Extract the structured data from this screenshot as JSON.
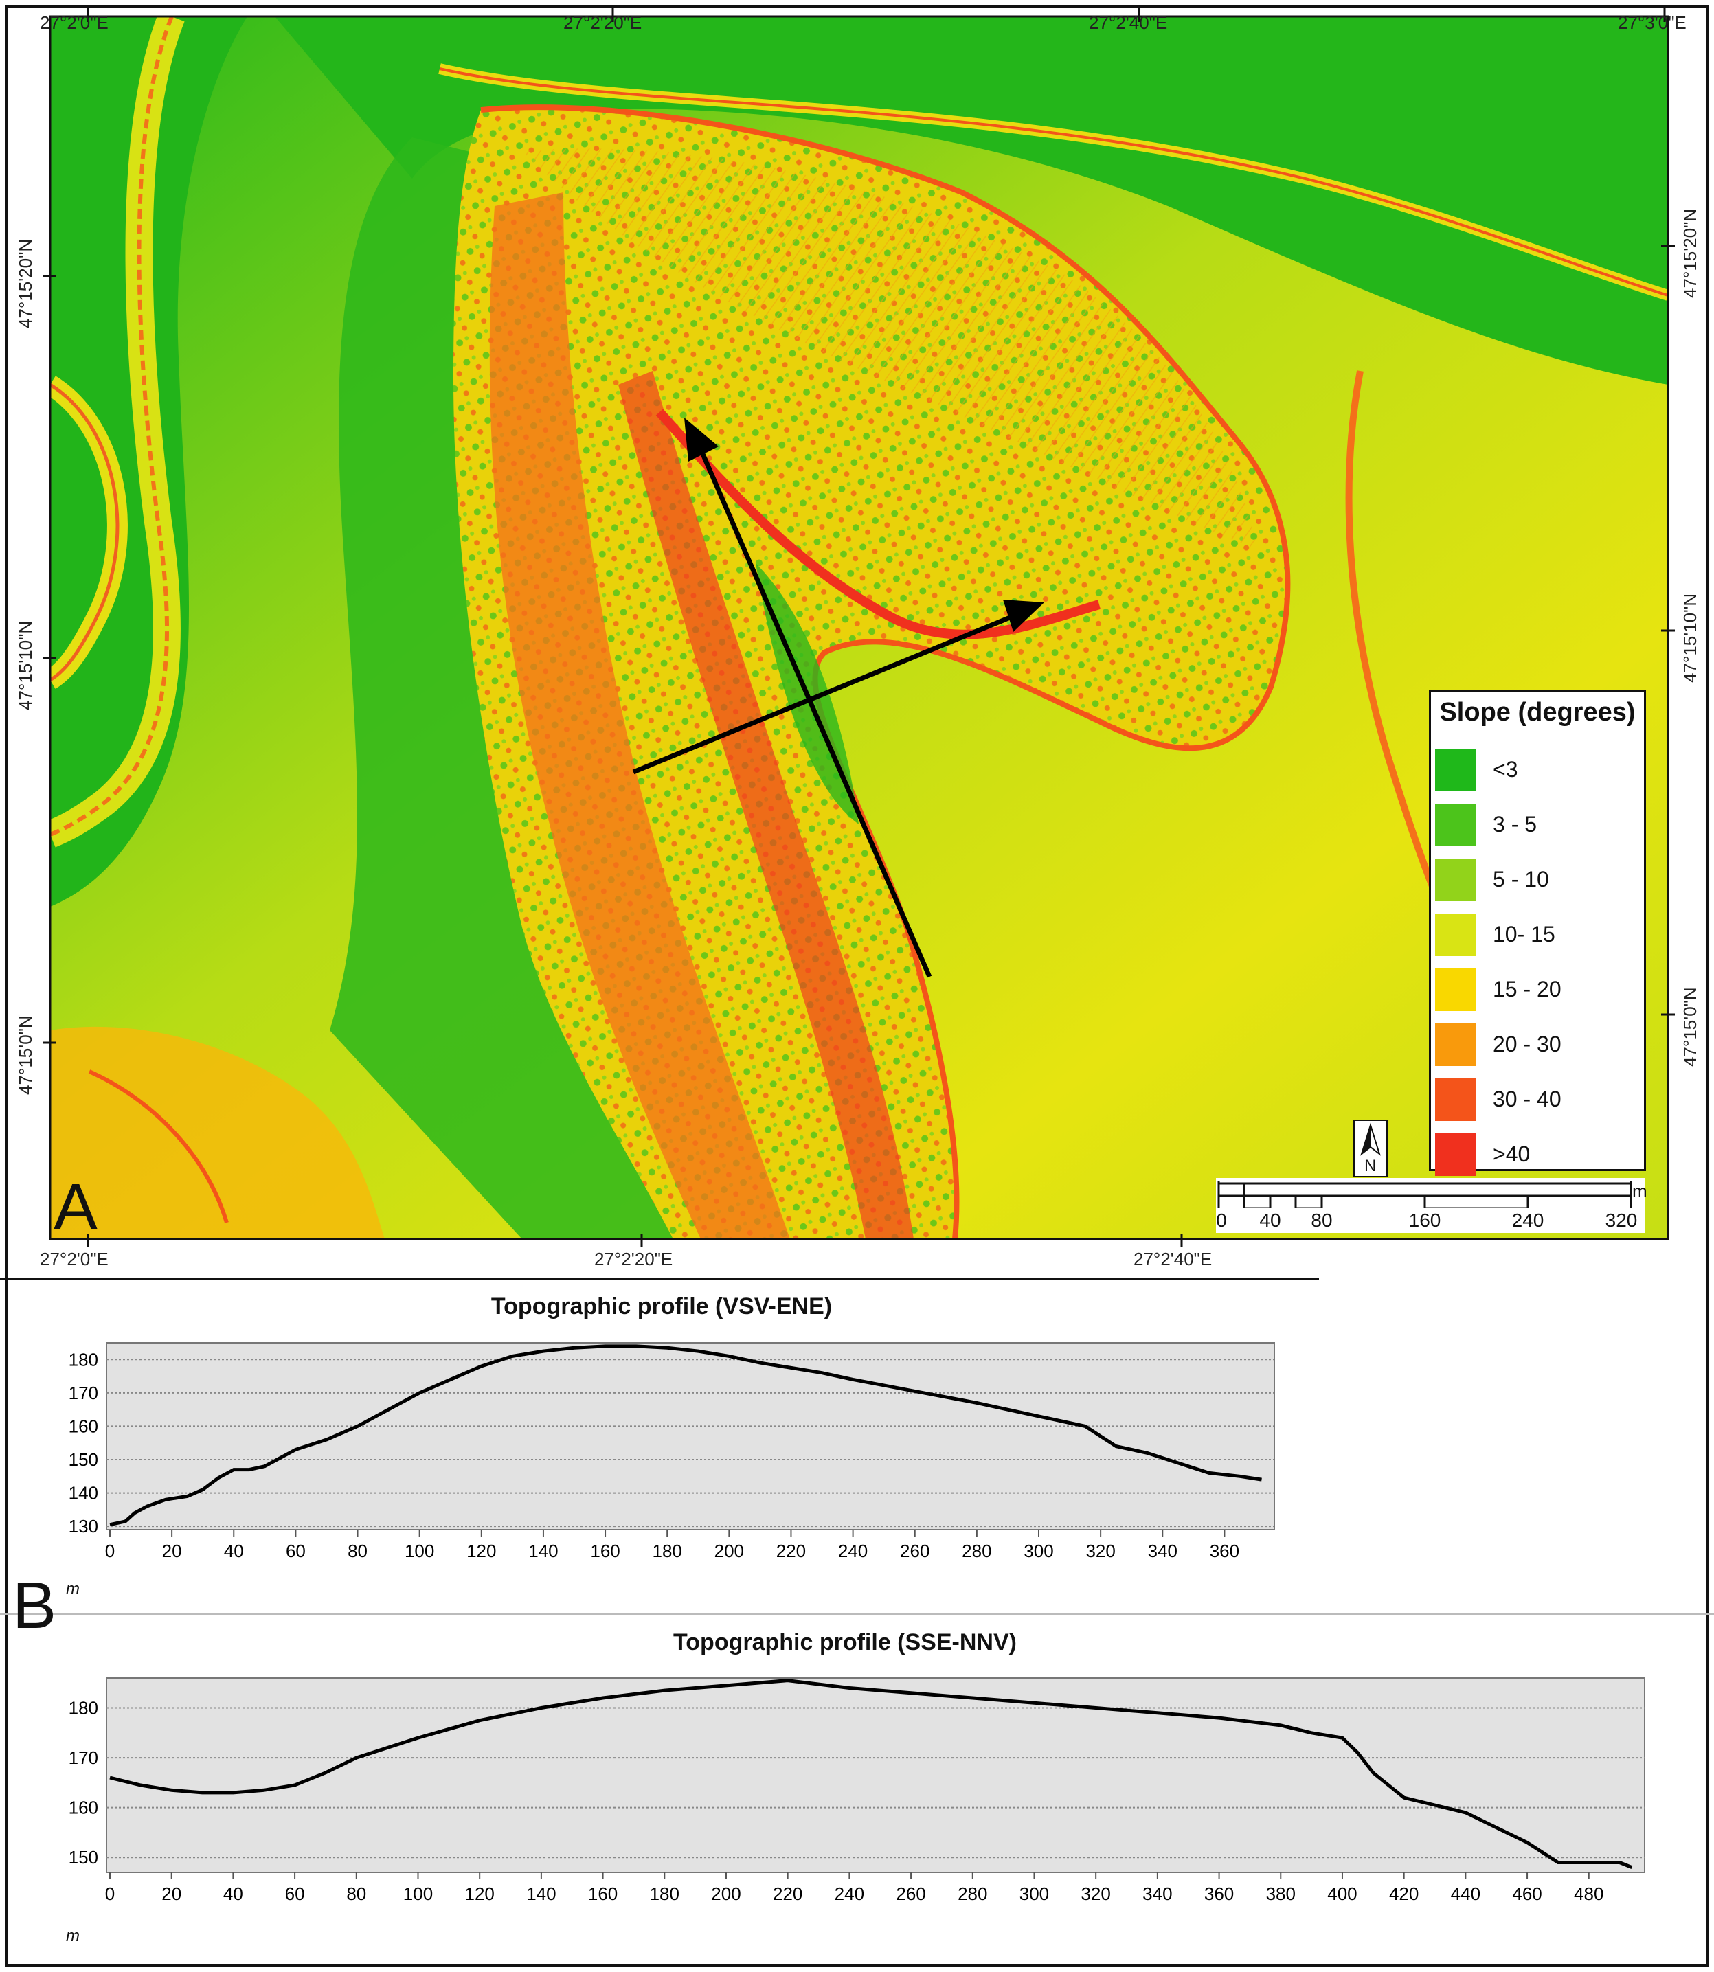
{
  "panel_a": {
    "letter": "A",
    "lon_labels_top": [
      "27°2'0\"E",
      "27°2'20\"E",
      "27°2'40\"E",
      "27°3'0\"E"
    ],
    "lon_labels_bottom": [
      "27°2'0\"E",
      "27°2'20\"E",
      "27°2'40\"E"
    ],
    "lat_labels_left": [
      "47°15'20\"N",
      "47°15'10\"N",
      "47°15'0\"N"
    ],
    "lat_labels_right": [
      "47°15'20\"N",
      "47°15'10\"N",
      "47°15'0\"N"
    ],
    "legend": {
      "title": "Slope (degrees)",
      "items": [
        {
          "label": "<3",
          "color": "#1fb81a"
        },
        {
          "label": "3 - 5",
          "color": "#4cc41b"
        },
        {
          "label": "5 - 10",
          "color": "#92d31a"
        },
        {
          "label": "10- 15",
          "color": "#d9e414"
        },
        {
          "label": "15 - 20",
          "color": "#f9d800"
        },
        {
          "label": "20 - 30",
          "color": "#f99a0c"
        },
        {
          "label": "30 - 40",
          "color": "#f4541a"
        },
        {
          "label": ">40",
          "color": "#f0301e"
        }
      ]
    },
    "north_label": "N",
    "scale": {
      "labels": [
        "0",
        "40",
        "80",
        "160",
        "240",
        "320"
      ],
      "unit": "m"
    }
  },
  "panel_b": {
    "letter": "B",
    "unit_label": "m",
    "chart_data": [
      {
        "type": "line",
        "title": "Topographic profile (VSV-ENE)",
        "xlabel": "m",
        "ylabel": "",
        "xlim": [
          0,
          375
        ],
        "ylim": [
          129,
          185
        ],
        "xticks": [
          0,
          20,
          40,
          60,
          80,
          100,
          120,
          140,
          160,
          180,
          200,
          220,
          240,
          260,
          280,
          300,
          320,
          340,
          360
        ],
        "yticks": [
          130,
          140,
          150,
          160,
          170,
          180
        ],
        "grid": true,
        "x": [
          0,
          5,
          8,
          12,
          18,
          25,
          30,
          35,
          40,
          45,
          50,
          60,
          70,
          80,
          90,
          100,
          110,
          120,
          130,
          140,
          150,
          160,
          170,
          180,
          190,
          200,
          210,
          220,
          230,
          240,
          260,
          280,
          300,
          315,
          320,
          325,
          335,
          345,
          355,
          365,
          372
        ],
        "y": [
          130.5,
          131.5,
          134,
          136,
          138,
          139,
          141,
          144.5,
          147,
          147,
          148,
          153,
          156,
          160,
          165,
          170,
          174,
          178,
          181,
          182.5,
          183.5,
          184,
          184,
          183.5,
          182.5,
          181,
          179,
          177.5,
          176,
          174,
          170.5,
          167,
          163,
          160,
          157,
          154,
          152,
          149,
          146,
          145,
          144
        ]
      },
      {
        "type": "line",
        "title": "Topographic profile (SSE-NNV)",
        "xlabel": "m",
        "ylabel": "",
        "xlim": [
          0,
          497
        ],
        "ylim": [
          147,
          186
        ],
        "xticks": [
          0,
          20,
          40,
          60,
          80,
          100,
          120,
          140,
          160,
          180,
          200,
          220,
          240,
          260,
          280,
          300,
          320,
          340,
          360,
          380,
          400,
          420,
          440,
          460,
          480
        ],
        "yticks": [
          150,
          160,
          170,
          180
        ],
        "grid": true,
        "x": [
          0,
          10,
          20,
          30,
          40,
          50,
          60,
          70,
          80,
          90,
          100,
          120,
          140,
          160,
          180,
          200,
          220,
          240,
          260,
          280,
          300,
          320,
          340,
          360,
          380,
          390,
          400,
          405,
          410,
          420,
          430,
          440,
          450,
          460,
          465,
          470,
          480,
          490,
          494
        ],
        "y": [
          166,
          164.5,
          163.5,
          163,
          163,
          163.5,
          164.5,
          167,
          170,
          172,
          174,
          177.5,
          180,
          182,
          183.5,
          184.5,
          185.5,
          184,
          183,
          182,
          181,
          180,
          179,
          178,
          176.5,
          175,
          174,
          171,
          167,
          162,
          160.5,
          159,
          156,
          153,
          151,
          149,
          149,
          149,
          148
        ]
      }
    ]
  }
}
